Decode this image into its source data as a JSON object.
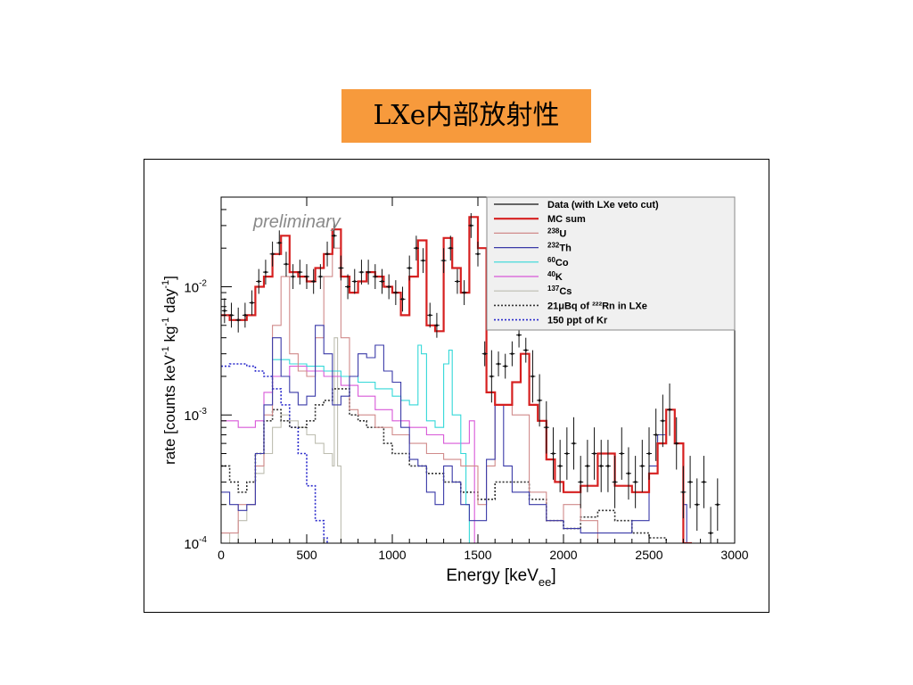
{
  "slide": {
    "title": "LXe内部放射性"
  },
  "chart_data": {
    "type": "line",
    "title": "",
    "annotation": "preliminary",
    "xlabel": "Energy [keV_ee]",
    "xlabel_main": "Energy [keV",
    "xlabel_sub": "ee",
    "xlabel_close": "]",
    "ylabel": "rate [counts keV-1 kg-1 day-1]",
    "ylabel_parts": [
      "rate [counts keV",
      "-1",
      " kg",
      "-1",
      " day",
      "-1",
      "]"
    ],
    "xlim": [
      0,
      3000
    ],
    "ylim": [
      0.0001,
      0.05
    ],
    "yscale": "log",
    "xticks": [
      "0",
      "500",
      "1000",
      "1500",
      "2000",
      "2500",
      "3000"
    ],
    "yticks": [
      {
        "base": "10",
        "exp": "-2",
        "value": 0.01
      },
      {
        "base": "10",
        "exp": "-3",
        "value": 0.001
      },
      {
        "base": "10",
        "exp": "-4",
        "value": 0.0001
      }
    ],
    "legend_position": "top-right",
    "legend": [
      {
        "key": "data",
        "sup": "",
        "label": "Data (with LXe veto cut)"
      },
      {
        "key": "mc",
        "sup": "",
        "label": "MC sum"
      },
      {
        "key": "u",
        "sup": "238",
        "label": "U"
      },
      {
        "key": "th",
        "sup": "232",
        "label": "Th"
      },
      {
        "key": "co",
        "sup": "60",
        "label": "Co"
      },
      {
        "key": "k",
        "sup": "40",
        "label": "K"
      },
      {
        "key": "cs",
        "sup": "137",
        "label": "Cs"
      },
      {
        "key": "rn",
        "sup": "",
        "label": "21μBq of ²²²Rn in LXe"
      },
      {
        "key": "kr",
        "sup": "",
        "label": "150 ppt of Kr"
      }
    ],
    "colors": {
      "data": "#111111",
      "mc": "#d62020",
      "u": "#d08a8a",
      "th": "#3a3aa8",
      "co": "#33d8d8",
      "k": "#d858d8",
      "cs": "#bdbdb0",
      "rn": "#333333",
      "kr": "#2a2acc"
    },
    "series": [
      {
        "key": "mc",
        "x": [
          0,
          50,
          100,
          150,
          200,
          250,
          300,
          350,
          400,
          450,
          500,
          550,
          600,
          650,
          700,
          750,
          800,
          850,
          900,
          950,
          1000,
          1050,
          1100,
          1150,
          1200,
          1250,
          1300,
          1350,
          1400,
          1450,
          1500,
          1550,
          1600,
          1650,
          1700,
          1750,
          1800,
          1850,
          1900,
          1950,
          2000,
          2100,
          2200,
          2300,
          2400,
          2500,
          2550,
          2600,
          2650,
          2700,
          2750
        ],
        "y": [
          0.006,
          0.0055,
          0.0055,
          0.006,
          0.01,
          0.012,
          0.018,
          0.025,
          0.013,
          0.012,
          0.011,
          0.014,
          0.018,
          0.028,
          0.012,
          0.009,
          0.011,
          0.013,
          0.012,
          0.01,
          0.009,
          0.006,
          0.012,
          0.023,
          0.005,
          0.0045,
          0.024,
          0.014,
          0.009,
          0.035,
          0.02,
          0.0015,
          0.0012,
          0.0012,
          0.0018,
          0.003,
          0.0012,
          0.0009,
          0.00045,
          0.0003,
          0.00025,
          0.00028,
          0.0005,
          0.00028,
          0.00025,
          0.00035,
          0.0006,
          0.0011,
          0.0006,
          0.0001,
          0.0001
        ]
      },
      {
        "key": "u",
        "x": [
          0,
          100,
          200,
          250,
          300,
          350,
          400,
          450,
          500,
          550,
          600,
          650,
          700,
          750,
          800,
          900,
          1000,
          1100,
          1200,
          1300,
          1400,
          1500,
          1550,
          1600,
          1700,
          1800,
          1900,
          2000,
          2100,
          2200
        ],
        "y": [
          0.00012,
          0.0002,
          0.0004,
          0.001,
          0.005,
          0.012,
          0.003,
          0.0022,
          0.002,
          0.004,
          0.012,
          0.02,
          0.004,
          0.0011,
          0.001,
          0.0008,
          0.0007,
          0.0006,
          0.0005,
          0.00045,
          0.0004,
          0.0002,
          0.0004,
          0.0012,
          0.001,
          0.00025,
          0.00015,
          0.0002,
          0.00015,
          0.0001
        ]
      },
      {
        "key": "th",
        "x": [
          0,
          50,
          100,
          150,
          200,
          250,
          300,
          350,
          400,
          450,
          500,
          550,
          600,
          650,
          700,
          750,
          800,
          850,
          900,
          950,
          1000,
          1050,
          1100,
          1150,
          1200,
          1250,
          1300,
          1350,
          1400,
          1450,
          1500,
          1550,
          1600,
          1650,
          1700,
          1750,
          1800,
          1900,
          2000,
          2100,
          2200,
          2300,
          2400,
          2500,
          2550,
          2600,
          2650,
          2700,
          2720
        ],
        "y": [
          0.00025,
          0.0002,
          0.00018,
          0.0002,
          0.0005,
          0.0012,
          0.004,
          0.002,
          0.0015,
          0.0012,
          0.0014,
          0.005,
          0.003,
          0.0012,
          0.0014,
          0.002,
          0.003,
          0.0028,
          0.0035,
          0.0022,
          0.0018,
          0.0008,
          0.00045,
          0.0004,
          0.00025,
          0.0002,
          0.0004,
          0.0003,
          0.0002,
          0.00015,
          0.00015,
          0.00045,
          0.0012,
          0.0004,
          0.00025,
          0.00025,
          0.0002,
          0.00015,
          0.00013,
          0.00012,
          0.00012,
          0.00012,
          0.00015,
          0.0004,
          0.0007,
          0.0011,
          0.0006,
          0.0002,
          0.0001
        ]
      },
      {
        "key": "co",
        "x": [
          300,
          400,
          500,
          600,
          700,
          800,
          900,
          1000,
          1050,
          1100,
          1150,
          1170,
          1200,
          1250,
          1300,
          1330,
          1350,
          1400,
          1430,
          1450
        ],
        "y": [
          0.0027,
          0.0025,
          0.0024,
          0.0022,
          0.002,
          0.0018,
          0.0016,
          0.0014,
          0.0013,
          0.0012,
          0.0035,
          0.003,
          0.0009,
          0.0008,
          0.0025,
          0.0032,
          0.001,
          0.0005,
          0.0002,
          0.0001
        ]
      },
      {
        "key": "k",
        "x": [
          0,
          100,
          200,
          250,
          300,
          400,
          500,
          600,
          700,
          800,
          900,
          1000,
          1100,
          1200,
          1300,
          1350,
          1400,
          1450,
          1460,
          1480
        ],
        "y": [
          0.0009,
          0.0008,
          0.0009,
          0.0015,
          0.002,
          0.0024,
          0.0022,
          0.002,
          0.0017,
          0.0014,
          0.0011,
          0.0009,
          0.0008,
          0.0007,
          0.0006,
          0.0006,
          0.0006,
          0.0009,
          0.0009,
          0.0001
        ]
      },
      {
        "key": "cs",
        "x": [
          0,
          50,
          100,
          150,
          200,
          250,
          300,
          350,
          400,
          450,
          500,
          550,
          600,
          650,
          661,
          680,
          700
        ],
        "y": [
          0.00012,
          0.0001,
          0.00015,
          0.0002,
          0.00035,
          0.0005,
          0.0008,
          0.001,
          0.0009,
          0.0008,
          0.0007,
          0.0006,
          0.0005,
          0.0004,
          0.004,
          0.0004,
          0.0001
        ]
      },
      {
        "key": "rn",
        "x": [
          0,
          50,
          100,
          150,
          200,
          250,
          300,
          350,
          400,
          450,
          500,
          550,
          600,
          650,
          700,
          750,
          800,
          850,
          900,
          950,
          1000,
          1100,
          1200,
          1300,
          1400,
          1500,
          1600,
          1700,
          1800,
          1900,
          2000,
          2100,
          2200,
          2300,
          2400,
          2500,
          2600
        ],
        "y": [
          0.0004,
          0.0003,
          0.00025,
          0.0003,
          0.0005,
          0.0009,
          0.0011,
          0.0009,
          0.0008,
          0.0008,
          0.0009,
          0.0012,
          0.0013,
          0.0016,
          0.0016,
          0.001,
          0.0009,
          0.0008,
          0.0008,
          0.0006,
          0.0005,
          0.0004,
          0.00035,
          0.0003,
          0.00025,
          0.00022,
          0.0003,
          0.0003,
          0.00022,
          0.00015,
          0.00013,
          0.00016,
          0.00018,
          0.00015,
          0.00012,
          0.00011,
          0.0001
        ]
      },
      {
        "key": "kr",
        "x": [
          0,
          50,
          100,
          150,
          200,
          250,
          300,
          350,
          400,
          450,
          500,
          550,
          600,
          620
        ],
        "y": [
          0.0024,
          0.0025,
          0.0025,
          0.0024,
          0.0022,
          0.002,
          0.0016,
          0.0012,
          0.0008,
          0.0005,
          0.00028,
          0.00015,
          0.00011,
          0.0001
        ]
      }
    ],
    "data_points": {
      "key": "data",
      "x": [
        20,
        60,
        100,
        140,
        180,
        220,
        260,
        300,
        340,
        380,
        420,
        460,
        500,
        540,
        580,
        620,
        660,
        700,
        740,
        780,
        820,
        860,
        900,
        940,
        980,
        1020,
        1060,
        1100,
        1140,
        1180,
        1220,
        1260,
        1300,
        1340,
        1380,
        1420,
        1460,
        1500,
        1540,
        1580,
        1620,
        1660,
        1700,
        1740,
        1780,
        1820,
        1860,
        1900,
        1940,
        1980,
        2020,
        2060,
        2100,
        2140,
        2180,
        2220,
        2260,
        2300,
        2340,
        2380,
        2420,
        2460,
        2500,
        2540,
        2580,
        2620,
        2660,
        2700,
        2740,
        2780,
        2820,
        2860,
        2900
      ],
      "y": [
        0.0065,
        0.006,
        0.0055,
        0.006,
        0.0075,
        0.011,
        0.013,
        0.018,
        0.022,
        0.015,
        0.012,
        0.013,
        0.012,
        0.011,
        0.012,
        0.018,
        0.025,
        0.014,
        0.01,
        0.011,
        0.013,
        0.013,
        0.012,
        0.011,
        0.01,
        0.009,
        0.008,
        0.014,
        0.02,
        0.016,
        0.006,
        0.005,
        0.016,
        0.02,
        0.011,
        0.009,
        0.03,
        0.018,
        0.003,
        0.002,
        0.0025,
        0.0024,
        0.003,
        0.0042,
        0.0032,
        0.002,
        0.0013,
        0.0008,
        0.0005,
        0.0004,
        0.0005,
        0.0006,
        0.0003,
        0.0004,
        0.0005,
        0.0004,
        0.0004,
        0.0003,
        0.0005,
        0.00035,
        0.0003,
        0.0004,
        0.0005,
        0.0007,
        0.0009,
        0.0011,
        0.0006,
        0.00025,
        0.0003,
        0.0002,
        0.0003,
        0.00012,
        0.0002
      ]
    }
  }
}
